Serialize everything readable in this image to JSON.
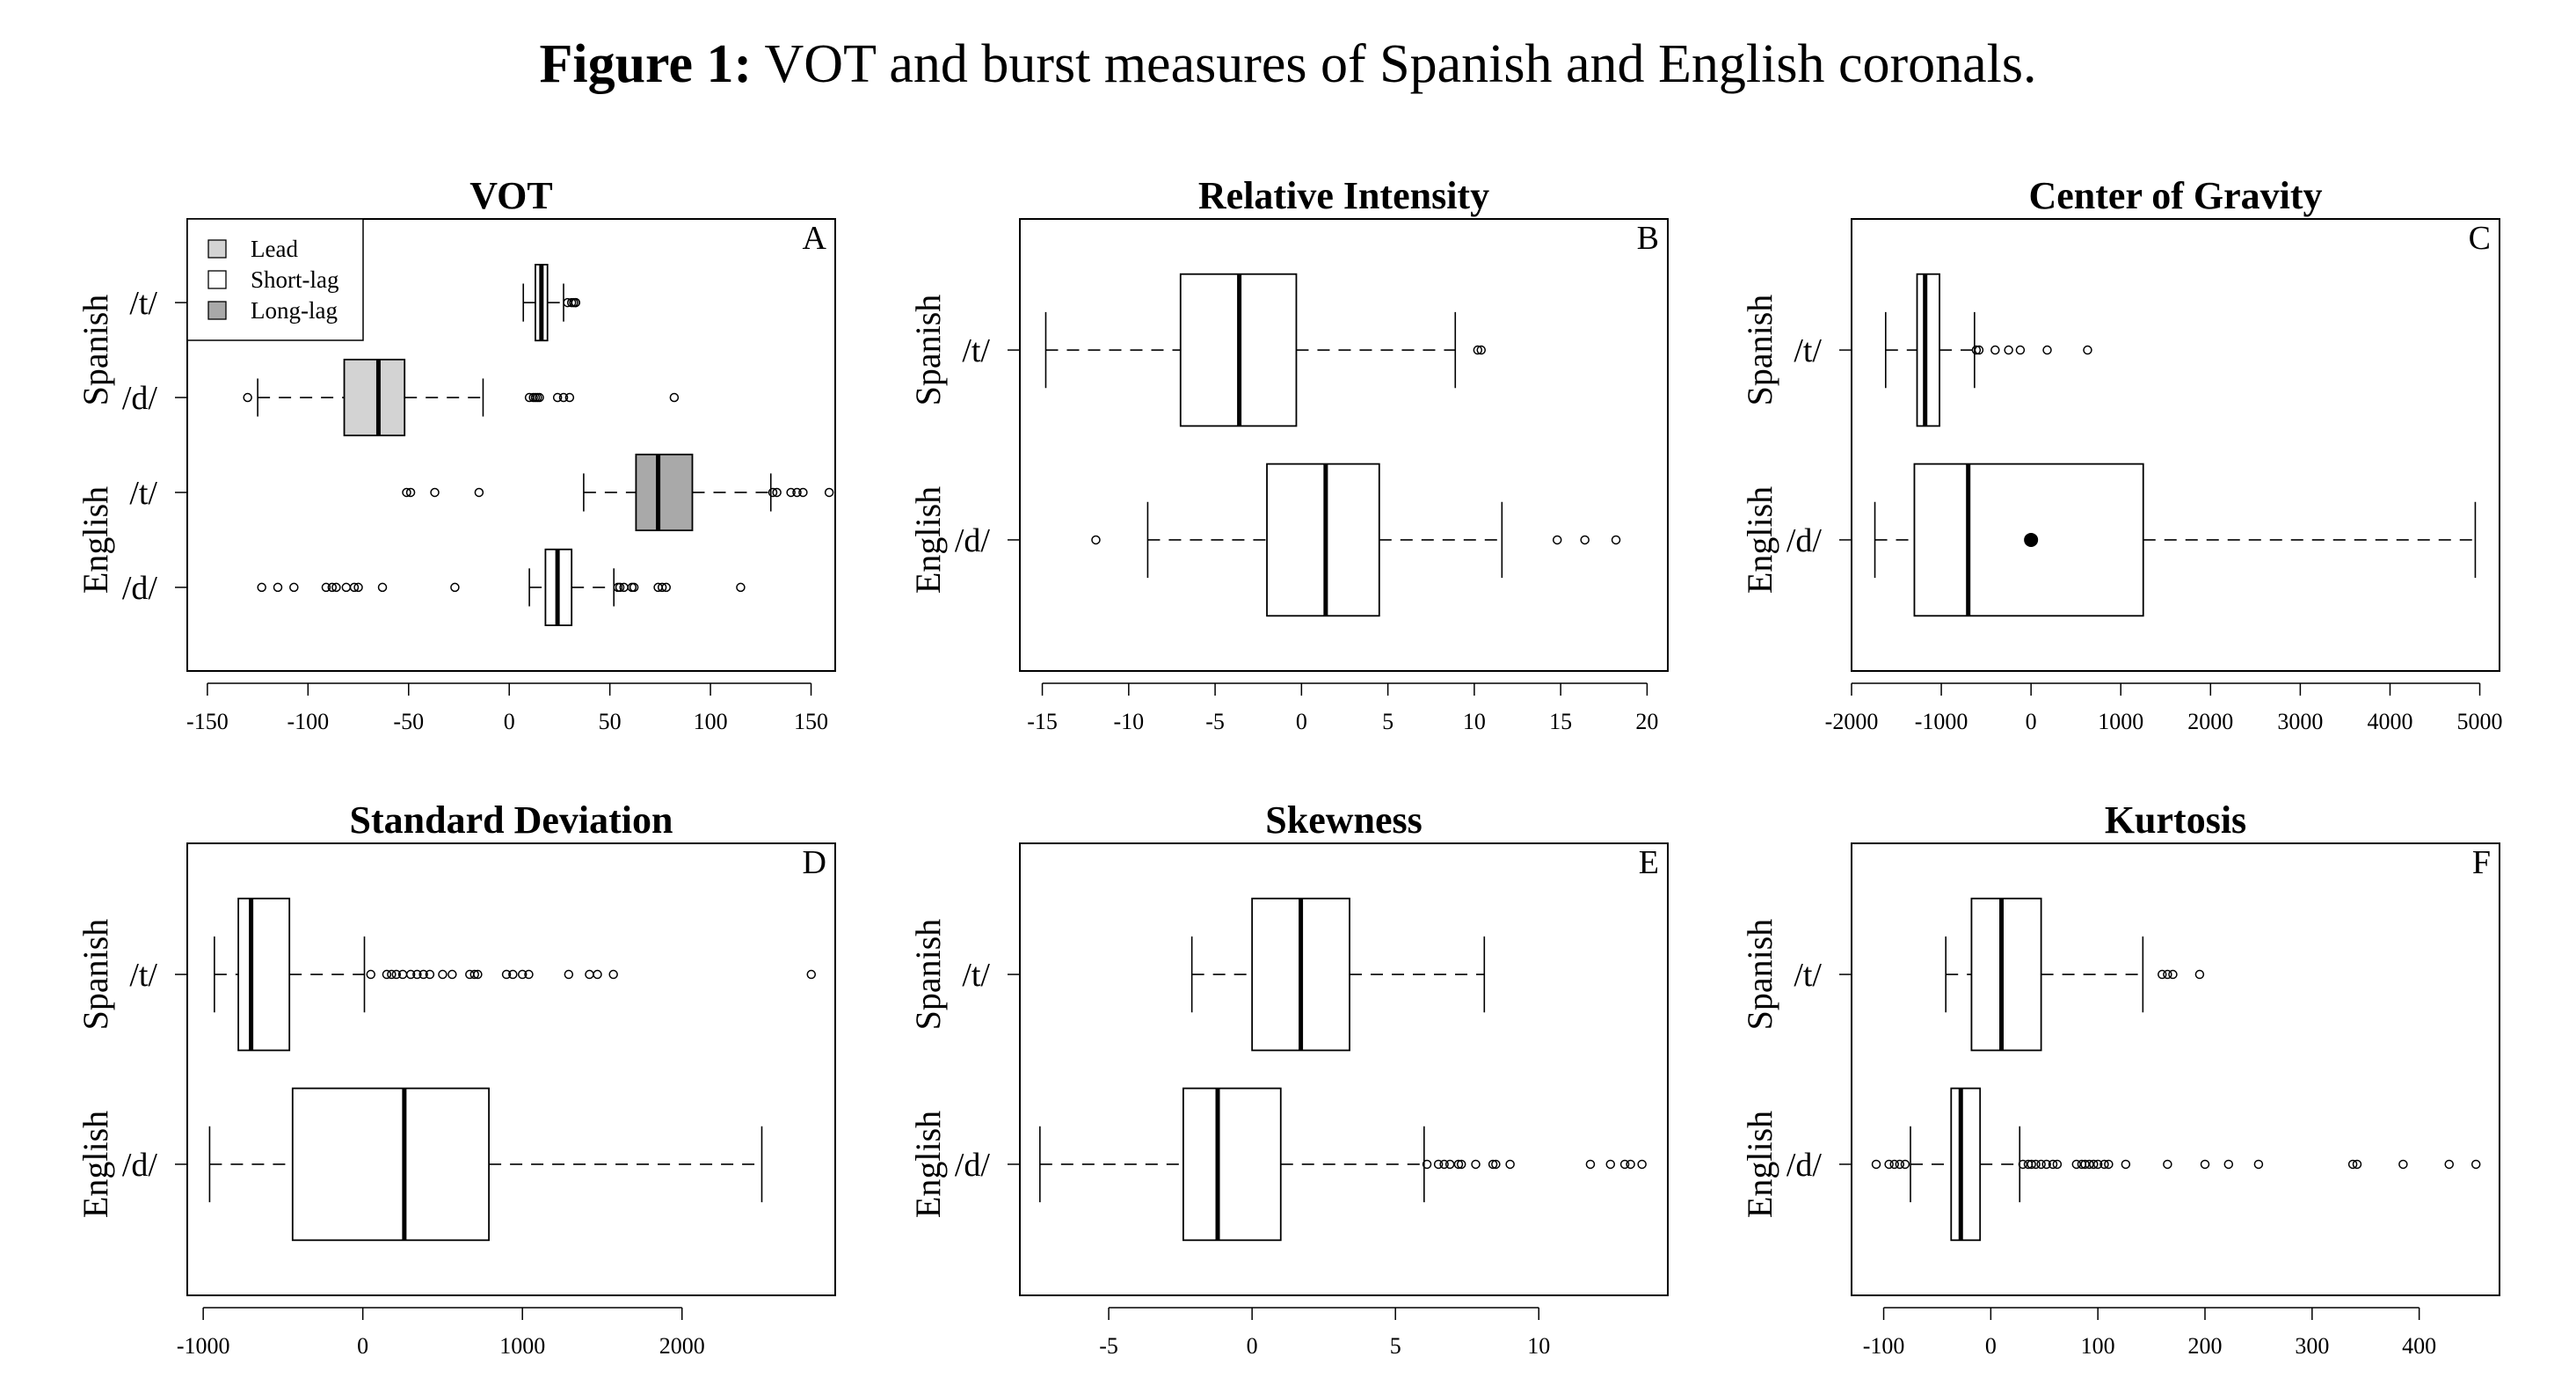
{
  "title": {
    "label": "Figure 1:",
    "text": "VOT and burst measures of Spanish and English coronals."
  },
  "colors": {
    "lead": "#d3d3d3",
    "short": "#ffffff",
    "long": "#a9a9a9"
  },
  "chart_data": [
    {
      "id": "A",
      "type": "boxplot",
      "title": "VOT",
      "panel_label": "A",
      "xlim": [
        -160,
        162
      ],
      "ticks": [
        -150,
        -100,
        -50,
        0,
        50,
        100,
        150
      ],
      "legend": {
        "position": "top-left",
        "entries": [
          {
            "label": "Lead",
            "fill": "#d3d3d3"
          },
          {
            "label": "Short-lag",
            "fill": "#ffffff"
          },
          {
            "label": "Long-lag",
            "fill": "#a9a9a9"
          }
        ]
      },
      "groups": [
        {
          "label": "Spanish",
          "rows": [
            0,
            1
          ]
        },
        {
          "label": "English",
          "rows": [
            2,
            3
          ]
        }
      ],
      "rows": [
        {
          "label": "/t/",
          "min": 7,
          "q1": 13,
          "median": 16,
          "q3": 19,
          "max": 27,
          "fill": "#ffffff",
          "outliers": [
            29,
            31,
            32,
            33,
            33
          ]
        },
        {
          "label": "/d/",
          "min": -125,
          "q1": -82,
          "median": -65,
          "q3": -52,
          "max": -13,
          "fill": "#d3d3d3",
          "outliers": [
            -130,
            10,
            12,
            13,
            14,
            15,
            24,
            27,
            30,
            82
          ]
        },
        {
          "label": "/t/",
          "min": 37,
          "q1": 63,
          "median": 74,
          "q3": 91,
          "max": 130,
          "fill": "#a9a9a9",
          "outliers": [
            -51,
            -49,
            -37,
            -15,
            131,
            133,
            140,
            143,
            146,
            159
          ]
        },
        {
          "label": "/d/",
          "min": 10,
          "q1": 18,
          "median": 24,
          "q3": 31,
          "max": 52,
          "fill": "#ffffff",
          "outliers": [
            -123,
            -115,
            -107,
            -91,
            -88,
            -86,
            -81,
            -77,
            -75,
            -63,
            -27,
            54,
            55,
            57,
            61,
            62,
            74,
            76,
            78,
            115
          ]
        }
      ]
    },
    {
      "id": "B",
      "type": "boxplot",
      "title": "Relative Intensity",
      "panel_label": "B",
      "xlim": [
        -16.3,
        21.2
      ],
      "ticks": [
        -15,
        -10,
        -5,
        0,
        5,
        10,
        15,
        20
      ],
      "groups": [
        {
          "label": "Spanish",
          "rows": [
            0
          ]
        },
        {
          "label": "English",
          "rows": [
            1
          ]
        }
      ],
      "rows": [
        {
          "label": "/t/",
          "min": -14.8,
          "q1": -7,
          "median": -3.6,
          "q3": -0.3,
          "max": 8.9,
          "outliers": [
            10.2,
            10.4
          ]
        },
        {
          "label": "/d/",
          "min": -8.9,
          "q1": -2,
          "median": 1.4,
          "q3": 4.5,
          "max": 11.6,
          "outliers": [
            -11.9,
            14.8,
            16.4,
            18.2
          ]
        }
      ]
    },
    {
      "id": "C",
      "type": "boxplot",
      "title": "Center of Gravity",
      "panel_label": "C",
      "xlim": [
        -2000,
        5220
      ],
      "ticks": [
        -2000,
        -1000,
        0,
        1000,
        2000,
        3000,
        4000,
        5000
      ],
      "groups": [
        {
          "label": "Spanish",
          "rows": [
            0
          ]
        },
        {
          "label": "English",
          "rows": [
            1
          ]
        }
      ],
      "rows": [
        {
          "label": "/t/",
          "min": -1620,
          "q1": -1270,
          "median": -1180,
          "q3": -1020,
          "max": -630,
          "outliers": [
            -610,
            -580,
            -400,
            -250,
            -120,
            180,
            630
          ]
        },
        {
          "label": "/d/",
          "min": -1740,
          "q1": -1300,
          "median": -700,
          "q3": 1250,
          "max": 4950,
          "mean": 0,
          "outliers": []
        }
      ]
    },
    {
      "id": "D",
      "type": "boxplot",
      "title": "Standard Deviation",
      "panel_label": "D",
      "xlim": [
        -1100,
        2960
      ],
      "ticks": [
        -1000,
        0,
        1000,
        2000
      ],
      "groups": [
        {
          "label": "Spanish",
          "rows": [
            0
          ]
        },
        {
          "label": "English",
          "rows": [
            1
          ]
        }
      ],
      "rows": [
        {
          "label": "/t/",
          "min": -930,
          "q1": -780,
          "median": -700,
          "q3": -460,
          "max": 10,
          "outliers": [
            50,
            150,
            180,
            210,
            250,
            300,
            340,
            380,
            420,
            500,
            560,
            670,
            700,
            720,
            900,
            940,
            1000,
            1040,
            1290,
            1420,
            1470,
            1570,
            2810
          ]
        },
        {
          "label": "/d/",
          "min": -960,
          "q1": -440,
          "median": 260,
          "q3": 790,
          "max": 2500,
          "outliers": []
        }
      ]
    },
    {
      "id": "E",
      "type": "boxplot",
      "title": "Skewness",
      "panel_label": "E",
      "xlim": [
        -8.1,
        14.5
      ],
      "ticks": [
        -5,
        0,
        5,
        10
      ],
      "groups": [
        {
          "label": "Spanish",
          "rows": [
            0
          ]
        },
        {
          "label": "English",
          "rows": [
            1
          ]
        }
      ],
      "rows": [
        {
          "label": "/t/",
          "min": -2.1,
          "q1": 0,
          "median": 1.7,
          "q3": 3.4,
          "max": 8.1,
          "outliers": []
        },
        {
          "label": "/d/",
          "min": -7.4,
          "q1": -2.4,
          "median": -1.2,
          "q3": 1,
          "max": 6,
          "outliers": [
            6.1,
            6.5,
            6.7,
            6.9,
            7.2,
            7.3,
            7.8,
            8.4,
            8.5,
            9,
            11.8,
            12.5,
            13,
            13.2,
            13.6
          ]
        }
      ]
    },
    {
      "id": "F",
      "type": "boxplot",
      "title": "Kurtosis",
      "panel_label": "F",
      "xlim": [
        -130,
        475
      ],
      "ticks": [
        -100,
        0,
        100,
        200,
        300,
        400
      ],
      "groups": [
        {
          "label": "Spanish",
          "rows": [
            0
          ]
        },
        {
          "label": "English",
          "rows": [
            1
          ]
        }
      ],
      "rows": [
        {
          "label": "/t/",
          "min": -42,
          "q1": -18,
          "median": 10,
          "q3": 47,
          "max": 142,
          "outliers": [
            160,
            165,
            170,
            195
          ]
        },
        {
          "label": "/d/",
          "min": -75,
          "q1": -37,
          "median": -28,
          "q3": -10,
          "max": 27,
          "outliers": [
            -107,
            -95,
            -90,
            -85,
            -80,
            30,
            35,
            38,
            42,
            47,
            52,
            58,
            62,
            80,
            85,
            88,
            92,
            96,
            100,
            106,
            110,
            126,
            165,
            200,
            222,
            250,
            338,
            342,
            385,
            428,
            453
          ]
        }
      ]
    }
  ]
}
